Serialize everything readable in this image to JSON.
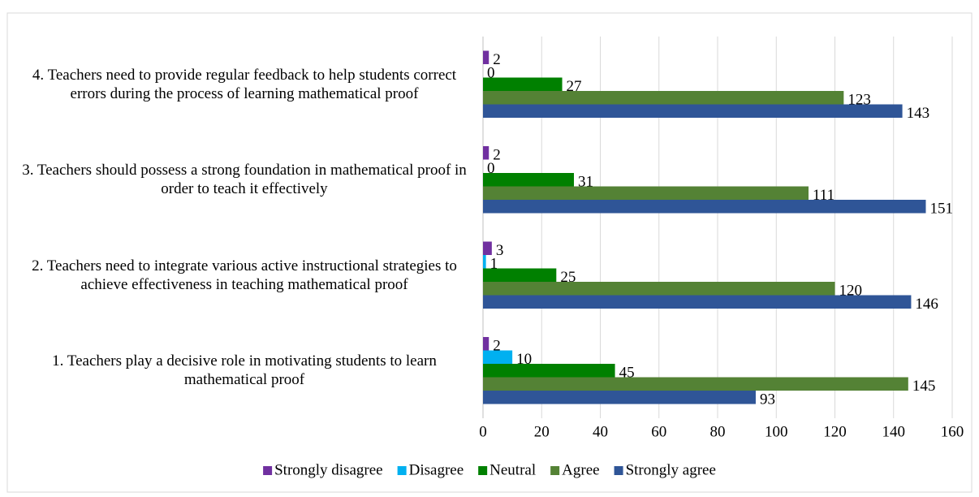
{
  "chart_data": {
    "type": "hbar",
    "categories": [
      "1. Teachers play a decisive role in motivating students to learn mathematical proof",
      "2. Teachers need to integrate various active instructional strategies to achieve effectiveness in teaching mathematical proof",
      "3. Teachers should possess a strong foundation in mathematical proof in order to teach it effectively",
      "4. Teachers need to provide regular feedback to help students correct errors during the process of learning mathematical proof"
    ],
    "series": [
      {
        "name": "Strongly disagree",
        "color": "#7030a0",
        "values": [
          2,
          3,
          2,
          2
        ]
      },
      {
        "name": "Disagree",
        "color": "#00b0f0",
        "values": [
          10,
          1,
          0,
          0
        ]
      },
      {
        "name": "Neutral",
        "color": "#008000",
        "values": [
          45,
          25,
          31,
          27
        ]
      },
      {
        "name": "Agree",
        "color": "#548235",
        "values": [
          145,
          120,
          111,
          123
        ]
      },
      {
        "name": "Strongly agree",
        "color": "#2f5597",
        "values": [
          93,
          146,
          151,
          143
        ]
      }
    ],
    "xlim": [
      0,
      160
    ],
    "xticks": [
      0,
      20,
      40,
      60,
      80,
      100,
      120,
      140,
      160
    ],
    "grid": true,
    "legend": "bottom"
  }
}
